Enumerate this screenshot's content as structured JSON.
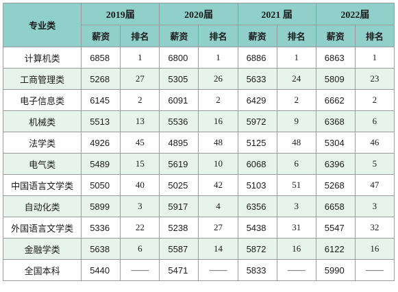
{
  "header": {
    "category_label": "专业类",
    "years": [
      "2019届",
      "2020届",
      "2021 届",
      "2022届"
    ],
    "sub_labels": {
      "salary": "薪资",
      "rank": "排名"
    }
  },
  "rows": [
    {
      "major": "计算机类",
      "values": [
        [
          "6858",
          "1"
        ],
        [
          "6800",
          "1"
        ],
        [
          "6886",
          "1"
        ],
        [
          "6863",
          "1"
        ]
      ]
    },
    {
      "major": "工商管理类",
      "values": [
        [
          "5268",
          "27"
        ],
        [
          "5305",
          "26"
        ],
        [
          "5633",
          "24"
        ],
        [
          "5809",
          "23"
        ]
      ]
    },
    {
      "major": "电子信息类",
      "values": [
        [
          "6145",
          "2"
        ],
        [
          "6091",
          "2"
        ],
        [
          "6429",
          "2"
        ],
        [
          "6662",
          "2"
        ]
      ]
    },
    {
      "major": "机械类",
      "values": [
        [
          "5513",
          "13"
        ],
        [
          "5536",
          "16"
        ],
        [
          "5972",
          "9"
        ],
        [
          "6368",
          "6"
        ]
      ]
    },
    {
      "major": "法学类",
      "values": [
        [
          "4926",
          "45"
        ],
        [
          "4895",
          "48"
        ],
        [
          "5125",
          "48"
        ],
        [
          "5304",
          "46"
        ]
      ]
    },
    {
      "major": "电气类",
      "values": [
        [
          "5489",
          "15"
        ],
        [
          "5619",
          "10"
        ],
        [
          "6068",
          "6"
        ],
        [
          "6396",
          "5"
        ]
      ]
    },
    {
      "major": "中国语言文学类",
      "values": [
        [
          "5050",
          "40"
        ],
        [
          "5025",
          "42"
        ],
        [
          "5103",
          "51"
        ],
        [
          "5268",
          "47"
        ]
      ]
    },
    {
      "major": "自动化类",
      "values": [
        [
          "5899",
          "3"
        ],
        [
          "5917",
          "4"
        ],
        [
          "6356",
          "3"
        ],
        [
          "6658",
          "3"
        ]
      ]
    },
    {
      "major": "外国语言文学类",
      "values": [
        [
          "5336",
          "22"
        ],
        [
          "5238",
          "27"
        ],
        [
          "5438",
          "31"
        ],
        [
          "5547",
          "32"
        ]
      ]
    },
    {
      "major": "金融学类",
      "values": [
        [
          "5638",
          "6"
        ],
        [
          "5587",
          "14"
        ],
        [
          "5872",
          "16"
        ],
        [
          "6122",
          "16"
        ]
      ]
    },
    {
      "major": "全国本科",
      "values": [
        [
          "5440",
          "——"
        ],
        [
          "5471",
          "——"
        ],
        [
          "5833",
          "——"
        ],
        [
          "5990",
          "——"
        ]
      ]
    }
  ],
  "colors": {
    "header_bg": "#8fd0ca",
    "stripe_bg": "#e7f4ec",
    "border": "#9a9a9a"
  }
}
